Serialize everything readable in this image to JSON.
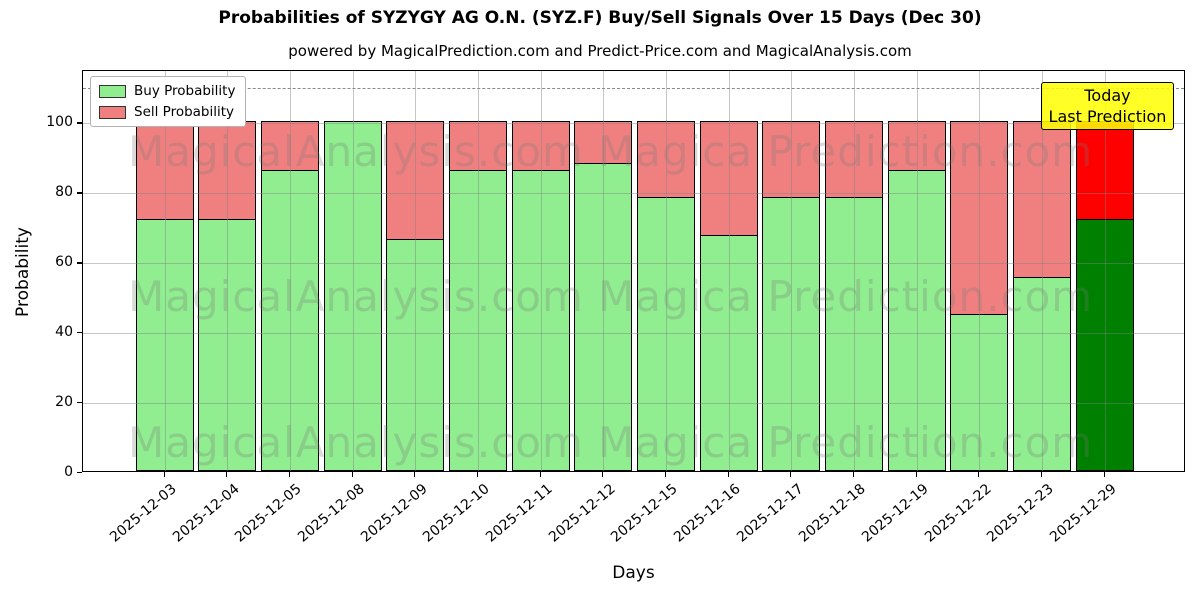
{
  "title": "Probabilities of SYZYGY AG O.N. (SYZ.F) Buy/Sell Signals Over 15 Days (Dec 30)",
  "subtitle": "powered by MagicalPrediction.com and Predict-Price.com and MagicalAnalysis.com",
  "axes": {
    "x_label": "Days",
    "y_label": "Probability",
    "y_ticks": [
      0,
      20,
      40,
      60,
      80,
      100
    ],
    "y_max": 115,
    "dashed_line_y": 110
  },
  "legend": [
    {
      "label": "Buy Probability",
      "color": "#90ee90"
    },
    {
      "label": "Sell Probability",
      "color": "#f08080"
    }
  ],
  "annotation": {
    "line1": "Today",
    "line2": "Last Prediction",
    "bg_color": "#ffff00"
  },
  "watermarks": {
    "left_text": "MagicalAnalysis.com",
    "right_text": "Magica Prediction.com",
    "row_centers_y": [
      152,
      297,
      443
    ]
  },
  "chart_data": {
    "type": "bar",
    "stacked": true,
    "title": "Probabilities of SYZYGY AG O.N. (SYZ.F) Buy/Sell Signals Over 15 Days (Dec 30)",
    "xlabel": "Days",
    "ylabel": "Probability",
    "ylim": [
      0,
      115
    ],
    "grid": true,
    "legend_position": "upper left",
    "categories": [
      "2025-12-03",
      "2025-12-04",
      "2025-12-05",
      "2025-12-08",
      "2025-12-09",
      "2025-12-10",
      "2025-12-11",
      "2025-12-12",
      "2025-12-15",
      "2025-12-16",
      "2025-12-17",
      "2025-12-18",
      "2025-12-19",
      "2025-12-22",
      "2025-12-23",
      "2025-12-29"
    ],
    "series": [
      {
        "name": "Buy Probability",
        "color": "#90ee90",
        "values": [
          72,
          72,
          86,
          100,
          66.5,
          86,
          86,
          88,
          78.5,
          67.5,
          78.5,
          78.5,
          86,
          45,
          55.5,
          72
        ]
      },
      {
        "name": "Sell Probability",
        "color": "#f08080",
        "values": [
          28,
          28,
          14,
          0,
          33.5,
          14,
          14,
          12,
          21.5,
          32.5,
          21.5,
          21.5,
          14,
          55,
          44.5,
          28
        ]
      }
    ],
    "today_index": 15,
    "today_colors": {
      "buy": "#008000",
      "sell": "#ff0000"
    },
    "bar_edge_color": "#000000"
  }
}
